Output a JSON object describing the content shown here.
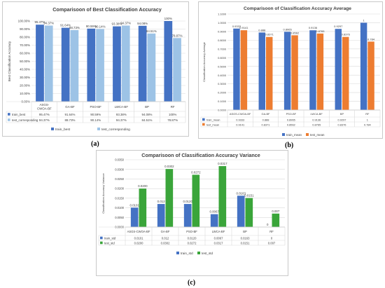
{
  "panel_labels": [
    "(a)",
    "(b)",
    "(c)"
  ],
  "colors": {
    "train_a": "#4472c4",
    "test_a": "#9dc3e6",
    "train_b": "#4472c4",
    "test_b": "#ed7d31",
    "train_c": "#4472c4",
    "test_c": "#3aa53a",
    "grid": "#d9d9d9",
    "text": "#404040"
  },
  "chart_data": [
    {
      "type": "bar",
      "title": "Comparisoon of Best Classification Accuracy",
      "xlabel": "",
      "ylabel": "Best Classification Accuracy",
      "categories": [
        "ASGS-CWOA-BF",
        "GA-BF",
        "PSO-BF",
        "LWCA-BF",
        "BP",
        "RF"
      ],
      "series": [
        {
          "name": "train_best",
          "values": [
            95.47,
            91.64,
            90.59,
            93.38,
            94.08,
            100
          ]
        },
        {
          "name": "test_corresponding",
          "values": [
            94.37,
            88.73,
            90.14,
            94.37,
            84.51,
            78.87
          ]
        }
      ],
      "bar_labels": [
        [
          "95.47%",
          "91.64%",
          "90.59%",
          "93.38%",
          "94.08%",
          "100%"
        ],
        [
          "94.37%",
          "88.73%",
          "90.14%",
          "94.37%",
          "84.51%",
          "78.87%"
        ]
      ],
      "ylim": [
        0,
        100
      ],
      "yticks": [
        "0.00%",
        "10.00%",
        "20.00%",
        "30.00%",
        "40.00%",
        "50.00%",
        "60.00%",
        "70.00%",
        "80.00%",
        "90.00%",
        "100.00%"
      ],
      "table": {
        "rows": [
          {
            "label": "train_best",
            "values": [
              "95.47%",
              "91.64%",
              "90.59%",
              "93.38%",
              "94.08%",
              "100%"
            ]
          },
          {
            "label": "test_corresponding",
            "values": [
              "94.37%",
              "88.73%",
              "90.14%",
              "94.37%",
              "84.51%",
              "78.87%"
            ]
          }
        ]
      },
      "legend": {
        "placement": "bottom",
        "entries": [
          "train_best",
          "test_corresponding"
        ]
      },
      "grid": true
    },
    {
      "type": "bar",
      "title": "Comparisoon of  Classification Accuracy Average",
      "xlabel": "",
      "ylabel": "Classification Accuracy Average",
      "categories": [
        "ASGS-CWOA-BF",
        "GA-BF",
        "PSO-BF",
        "LWCA-BF",
        "BP",
        "RF"
      ],
      "series": [
        {
          "name": "train_mean",
          "values": [
            0.9333,
            0.888,
            0.8965,
            0.9136,
            0.9297,
            1
          ]
        },
        {
          "name": "test_mean",
          "values": [
            0.9141,
            0.8371,
            0.8562,
            0.8765,
            0.8376,
            0.784
          ]
        }
      ],
      "bar_labels": [
        [
          "0.9333",
          "0.888",
          "0.8965",
          "0.9136",
          "0.9297",
          "1"
        ],
        [
          "0.9141",
          "0.8371",
          "0.8562",
          "0.8765",
          "0.8376",
          "0.784"
        ]
      ],
      "ylim": [
        0,
        1.1
      ],
      "yticks": [
        "0.0000",
        "0.1000",
        "0.2000",
        "0.3000",
        "0.4000",
        "0.5000",
        "0.6000",
        "0.7000",
        "0.8000",
        "0.9000",
        "1.0000",
        "1.1000"
      ],
      "table": {
        "rows": [
          {
            "label": "train_mean",
            "values": [
              "0.9333",
              "0.888",
              "0.8965",
              "0.9136",
              "0.9297",
              "1"
            ]
          },
          {
            "label": "test_mean",
            "values": [
              "0.9141",
              "0.8371",
              "0.8562",
              "0.8765",
              "0.8376",
              "0.784"
            ]
          }
        ]
      },
      "legend": {
        "placement": "bottom",
        "entries": [
          "train_mean",
          "test_mean"
        ]
      },
      "grid": true
    },
    {
      "type": "bar",
      "title": "Comparisoon of Classification Accuracy Variance",
      "xlabel": "",
      "ylabel": "Classification Accuracy Variance",
      "categories": [
        "ASGS-CWOA-BF",
        "GA-BF",
        "PSO-BF",
        "LWCA-BF",
        "BP",
        "RF"
      ],
      "series": [
        {
          "name": "train_std",
          "values": [
            0.0101,
            0.012,
            0.012,
            0.0067,
            0.0163,
            0
          ]
        },
        {
          "name": "test_std",
          "values": [
            0.02,
            0.0302,
            0.0272,
            0.0317,
            0.0151,
            0.007
          ]
        }
      ],
      "bar_labels": [
        [
          "0.0101",
          "0.012",
          "0.0120",
          "0.0067",
          "0.0163",
          "0"
        ],
        [
          "0.0200",
          "0.0302",
          "0.0272",
          "0.0317",
          "0.0151",
          "0.007"
        ]
      ],
      "ylim": [
        0,
        0.035
      ],
      "yticks": [
        "0.0000",
        "0.0050",
        "0.0100",
        "0.0150",
        "0.0200",
        "0.0250",
        "0.0300",
        "0.0350"
      ],
      "table": {
        "rows": [
          {
            "label": "train_std",
            "values": [
              "0.0101",
              "0.012",
              "0.0120",
              "0.0067",
              "0.0163",
              "0"
            ]
          },
          {
            "label": "test_std",
            "values": [
              "0.0200",
              "0.0302",
              "0.0272",
              "0.0317",
              "0.0151",
              "0.007"
            ]
          }
        ]
      },
      "legend": {
        "placement": "bottom",
        "entries": [
          "train_std",
          "test_std"
        ]
      },
      "grid": true
    }
  ]
}
